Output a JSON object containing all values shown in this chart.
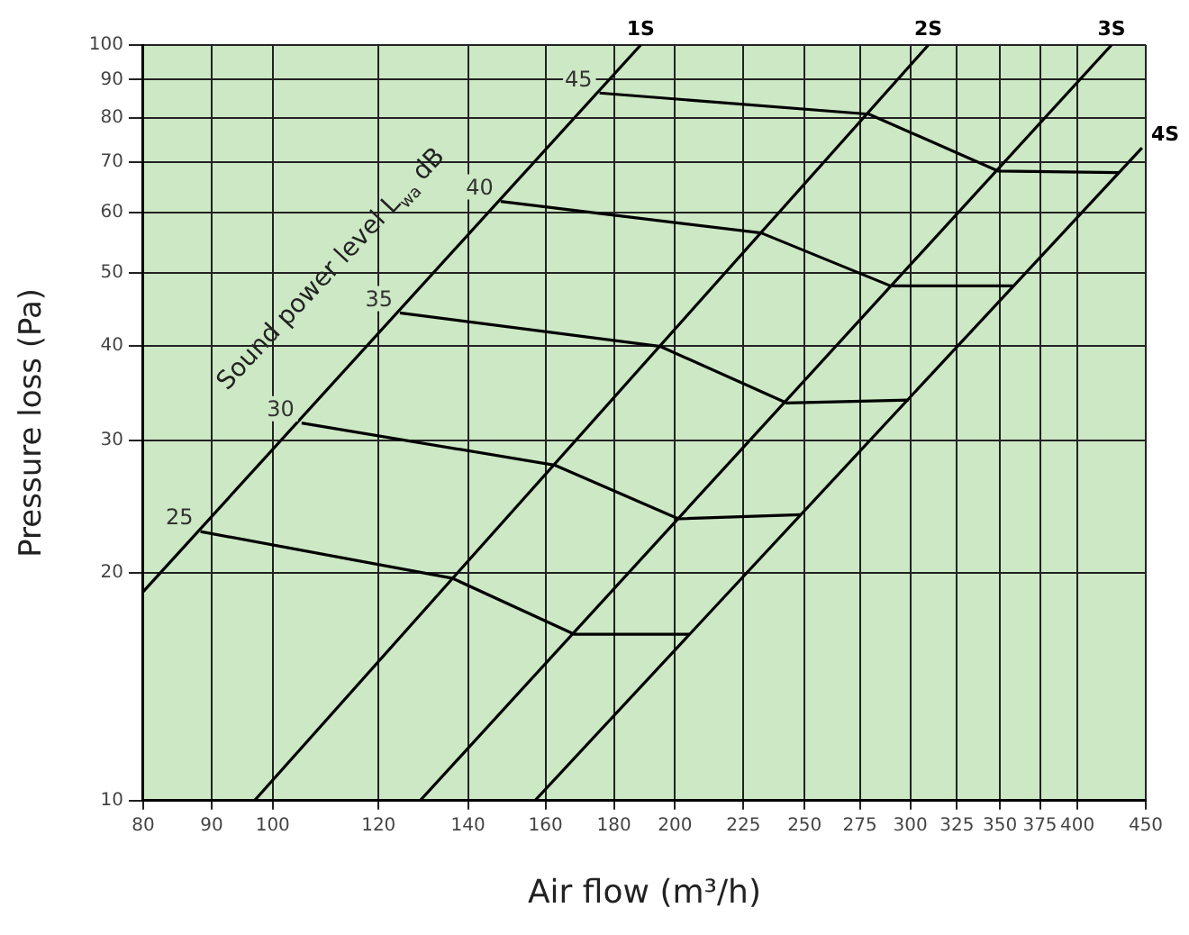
{
  "chart_data": {
    "type": "line",
    "xlabel": "Air flow (m³/h)",
    "ylabel": "Pressure loss (Pa)",
    "log": "xy",
    "xlim": [
      80,
      450
    ],
    "ylim": [
      10,
      100
    ],
    "xticks": [
      80,
      90,
      100,
      120,
      140,
      160,
      180,
      200,
      225,
      250,
      275,
      300,
      325,
      350,
      375,
      400,
      450
    ],
    "yticks": [
      10,
      20,
      30,
      40,
      50,
      60,
      70,
      80,
      90,
      100
    ],
    "grid": true,
    "legend": false,
    "marker": "none",
    "line_style": "solid",
    "annotations": [
      "Sound power level L$_{wa}$ dB"
    ],
    "series": [
      {
        "name": "1S",
        "color": "#000000",
        "x": [
          80,
          188.5
        ],
        "values": [
          18.9,
          100
        ]
      },
      {
        "name": "2S",
        "color": "#000000",
        "x": [
          96.9,
          309.4
        ],
        "values": [
          10,
          100
        ]
      },
      {
        "name": "3S",
        "color": "#000000",
        "x": [
          128.9,
          424.2
        ],
        "values": [
          10,
          100
        ]
      },
      {
        "name": "4S",
        "color": "#000000",
        "x": [
          157.1,
          447.1
        ],
        "values": [
          10,
          73.1
        ]
      },
      {
        "name": "25",
        "color": "#000000",
        "x": [
          88.3,
          136.2,
          168.2,
          205
        ],
        "values": [
          22.7,
          19.7,
          16.6,
          16.6
        ]
      },
      {
        "name": "30",
        "color": "#000000",
        "x": [
          105.1,
          162.5,
          201.2,
          248.3
        ],
        "values": [
          31.6,
          27.8,
          23.6,
          23.9
        ]
      },
      {
        "name": "35",
        "color": "#000000",
        "x": [
          124.5,
          195.1,
          242.3,
          299.1
        ],
        "values": [
          44.2,
          39.9,
          33.6,
          33.9
        ]
      },
      {
        "name": "40",
        "color": "#000000",
        "x": [
          148.1,
          232,
          289.9,
          357.8
        ],
        "values": [
          62.1,
          56.4,
          48,
          48
        ]
      },
      {
        "name": "45",
        "color": "#000000",
        "x": [
          175.6,
          279.3,
          349.1,
          429.4
        ],
        "values": [
          86.4,
          81,
          68.1,
          67.8
        ]
      }
    ]
  }
}
